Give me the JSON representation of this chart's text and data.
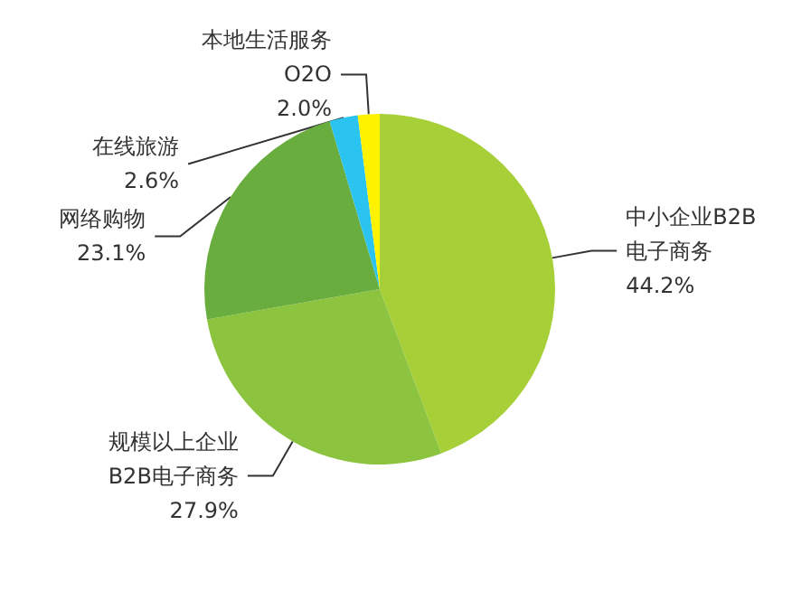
{
  "chart_data": {
    "type": "pie",
    "categories": [
      "中小企业B2B电子商务",
      "规模以上企业B2B电子商务",
      "网络购物",
      "在线旅游",
      "本地生活服务O2O"
    ],
    "values": [
      44.2,
      27.9,
      23.1,
      2.6,
      2.0
    ],
    "value_labels": [
      "44.2%",
      "27.9%",
      "23.1%",
      "2.6%",
      "2.0%"
    ],
    "colors": [
      "#a6cf38",
      "#8cc43f",
      "#69ad3f",
      "#2bc3ef",
      "#fff200"
    ]
  }
}
